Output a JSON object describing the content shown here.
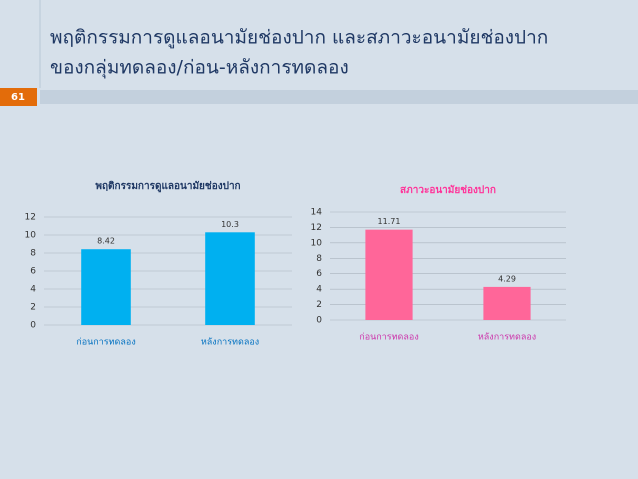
{
  "slide": {
    "title_lines": [
      "พฤติกรรมการดูแลอนามัยช่องปาก และสภาวะอนามัยช่องปาก",
      "ของกลุ่มทดลอง/ก่อน-หลังการทดลอง"
    ],
    "page_number": "61"
  },
  "chart_data": [
    {
      "type": "bar",
      "title": "พฤติกรรมการดูแลอนามัยช่องปาก",
      "title_color": "#1f3864",
      "categories": [
        "ก่อนการทดลอง",
        "หลังการทดลอง"
      ],
      "category_label_color": "#0070c0",
      "values": [
        8.42,
        10.3
      ],
      "color": "#00b0f0",
      "ylim": [
        0,
        12
      ],
      "yticks": [
        0,
        2,
        4,
        6,
        8,
        10,
        12
      ],
      "grid": true
    },
    {
      "type": "bar",
      "title": "สภาวะอนามัยช่องปาก",
      "title_color": "#ff3399",
      "categories": [
        "ก่อนการทดลอง",
        "หลังการทดลอง"
      ],
      "category_label_color": "#cc33aa",
      "values": [
        11.71,
        4.29
      ],
      "color": "#ff6699",
      "ylim": [
        0,
        14
      ],
      "yticks": [
        0,
        2,
        4,
        6,
        8,
        10,
        12,
        14
      ],
      "grid": true
    }
  ]
}
